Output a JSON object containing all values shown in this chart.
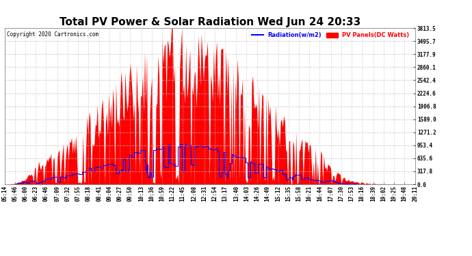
{
  "title": "Total PV Power & Solar Radiation Wed Jun 24 20:33",
  "copyright": "Copyright 2020 Cartronics.com",
  "legend_radiation": "Radiation(w/m2)",
  "legend_pv": "PV Panels(DC Watts)",
  "ylabel_right_values": [
    3813.5,
    3495.7,
    3177.9,
    2860.1,
    2542.4,
    2224.6,
    1906.8,
    1589.0,
    1271.2,
    953.4,
    635.6,
    317.8,
    0.0
  ],
  "y_max": 3813.5,
  "y_min": 0.0,
  "background_color": "#ffffff",
  "grid_color": "#c0c0c0",
  "pv_color": "#ff0000",
  "radiation_color": "#0000ff",
  "title_fontsize": 11,
  "tick_fontsize": 5.5,
  "n_points": 400,
  "figwidth": 6.9,
  "figheight": 3.75,
  "dpi": 100
}
